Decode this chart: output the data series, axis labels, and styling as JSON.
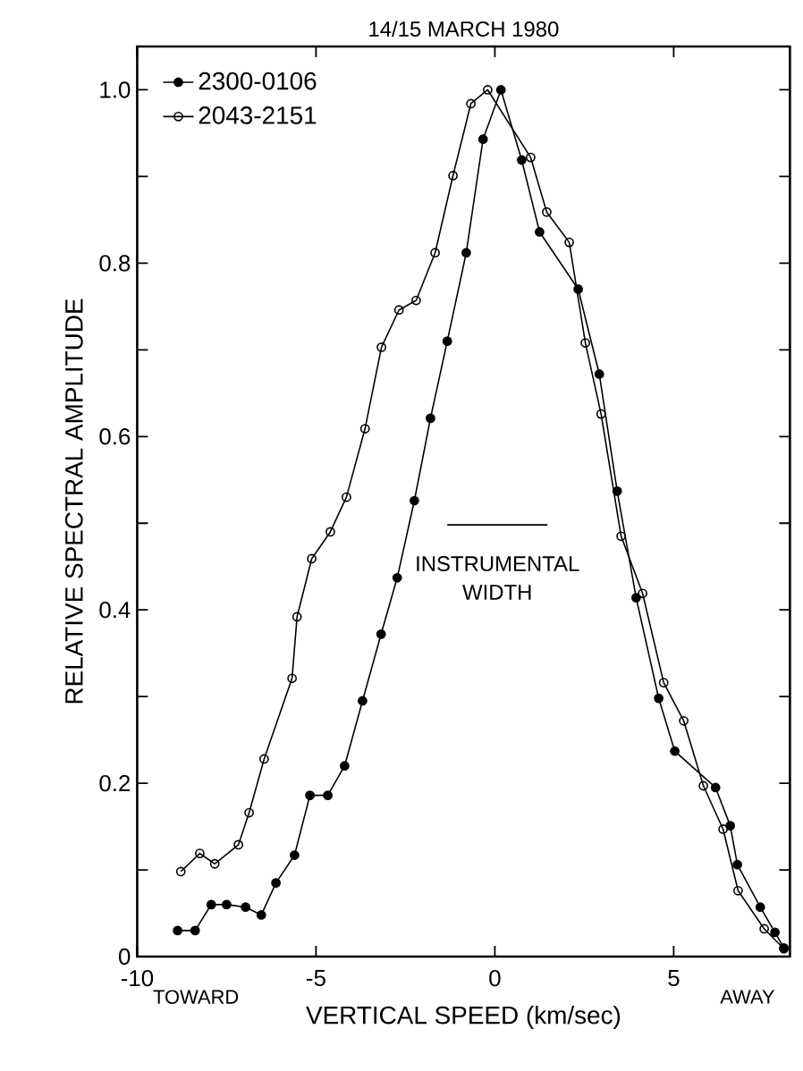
{
  "chart_data": {
    "type": "line",
    "title": "14/15 MARCH 1980",
    "xlabel": "VERTICAL SPEED (km/sec)",
    "ylabel": "RELATIVE SPECTRAL AMPLITUDE",
    "xlim": [
      -10,
      8.25
    ],
    "ylim": [
      0,
      1.05
    ],
    "xticks": [
      -10,
      -5,
      0,
      5
    ],
    "yticks": [
      0,
      {
        "value": 0.1,
        "label": null
      },
      0.2,
      {
        "value": 0.3,
        "label": null
      },
      0.4,
      {
        "value": 0.5,
        "label": null
      },
      0.6,
      {
        "value": 0.7,
        "label": null
      },
      0.8,
      {
        "value": 0.9,
        "label": null
      },
      {
        "value": 1.0,
        "label": "1.0"
      }
    ],
    "grid": false,
    "legend": "top left",
    "line_style": "solid",
    "series": [
      {
        "name": "2300-0106",
        "color": "#000000",
        "marker": "circle",
        "x": [
          -8.87,
          -8.38,
          -7.93,
          -7.5,
          -6.97,
          -6.53,
          -6.12,
          -5.6,
          -5.17,
          -4.67,
          -4.2,
          -3.7,
          -3.18,
          -2.73,
          -2.25,
          -1.8,
          -1.33,
          -0.8,
          -0.33,
          0.17,
          0.75,
          1.25,
          2.33,
          2.92,
          3.42,
          3.95,
          4.58,
          5.03,
          6.17,
          6.58,
          6.78,
          7.42,
          7.83,
          8.08
        ],
        "values": [
          0.03,
          0.03,
          0.06,
          0.06,
          0.057,
          0.048,
          0.085,
          0.117,
          0.186,
          0.186,
          0.22,
          0.295,
          0.372,
          0.437,
          0.526,
          0.621,
          0.71,
          0.812,
          0.943,
          1.0,
          0.919,
          0.836,
          0.77,
          0.672,
          0.537,
          0.414,
          0.298,
          0.237,
          0.195,
          0.151,
          0.106,
          0.057,
          0.028,
          0.01
        ]
      },
      {
        "name": "2043-2151",
        "color": "#000000",
        "marker": "open circle",
        "x": [
          -8.78,
          -8.25,
          -7.83,
          -7.17,
          -6.87,
          -6.45,
          -5.67,
          -5.53,
          -5.12,
          -4.6,
          -4.15,
          -3.63,
          -3.17,
          -2.68,
          -2.2,
          -1.67,
          -1.17,
          -0.67,
          -0.2,
          1.0,
          1.45,
          2.08,
          2.53,
          2.97,
          3.53,
          4.13,
          4.72,
          5.28,
          5.83,
          6.38,
          6.8,
          7.53,
          8.08
        ],
        "values": [
          0.098,
          0.119,
          0.107,
          0.129,
          0.166,
          0.228,
          0.321,
          0.392,
          0.459,
          0.49,
          0.53,
          0.609,
          0.703,
          0.746,
          0.757,
          0.812,
          0.901,
          0.984,
          1.0,
          0.922,
          0.859,
          0.824,
          0.708,
          0.626,
          0.485,
          0.419,
          0.316,
          0.272,
          0.197,
          0.147,
          0.076,
          0.032,
          0.009
        ]
      },
      {
        "type": "line",
        "color": "#000000",
        "marker": "none",
        "x": [
          -1.33,
          1.47
        ],
        "values": [
          0.498,
          0.498
        ]
      }
    ],
    "annotations": [
      {
        "text": "INSTRUMENTAL WIDTH",
        "x": 0.07,
        "y": 0.498
      },
      "TOWARD",
      "AWAY"
    ]
  }
}
